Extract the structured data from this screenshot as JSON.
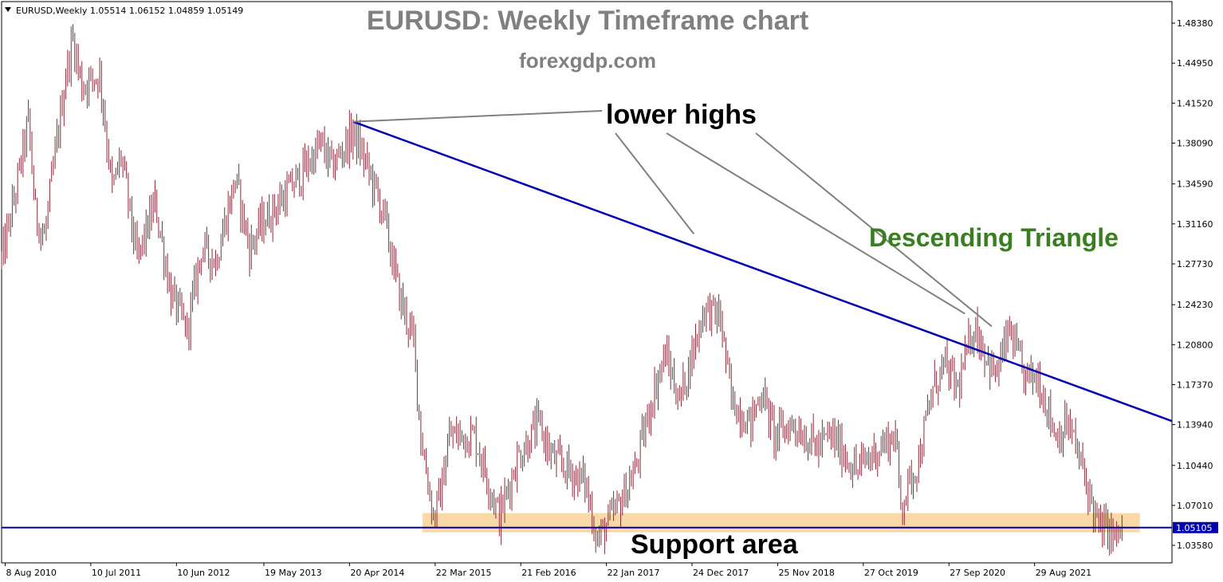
{
  "chart_data": {
    "type": "candlestick",
    "symbol_info": {
      "symbol": "EURUSD",
      "timeframe": "Weekly",
      "open": "1.05514",
      "high": "1.06152",
      "low": "1.04859",
      "close": "1.05149",
      "text": "EURUSD,Weekly  1.05514 1.06152 1.04859 1.05149"
    },
    "title": "EURUSD: Weekly Timeframe chart",
    "subtitle": "forexgdp.com",
    "y_range": [
      1.0208,
      1.5023
    ],
    "y_ticks": [
      "1.48380",
      "1.44950",
      "1.41520",
      "1.38090",
      "1.34590",
      "1.31160",
      "1.27730",
      "1.24230",
      "1.20800",
      "1.17370",
      "1.13940",
      "1.10440",
      "1.07010",
      "1.03580"
    ],
    "current_price": "1.05105",
    "x_range": [
      "2010-07-25",
      "2023-02-19"
    ],
    "x_tick_labels": [
      {
        "label": "8 Aug 2010",
        "date": "2010-08-08"
      },
      {
        "label": "10 Jul 2011",
        "date": "2011-07-10"
      },
      {
        "label": "10 Jun 2012",
        "date": "2012-06-10"
      },
      {
        "label": "19 May 2013",
        "date": "2013-05-19"
      },
      {
        "label": "20 Apr 2014",
        "date": "2014-04-20"
      },
      {
        "label": "22 Mar 2015",
        "date": "2015-03-22"
      },
      {
        "label": "21 Feb 2016",
        "date": "2016-02-21"
      },
      {
        "label": "22 Jan 2017",
        "date": "2017-01-22"
      },
      {
        "label": "24 Dec 2017",
        "date": "2017-12-24"
      },
      {
        "label": "25 Nov 2018",
        "date": "2018-11-25"
      },
      {
        "label": "27 Oct 2019",
        "date": "2019-10-27"
      },
      {
        "label": "27 Sep 2020",
        "date": "2020-09-27"
      },
      {
        "label": "29 Aug 2021",
        "date": "2021-08-29"
      }
    ],
    "price_path": [
      {
        "date": "2010-07-25",
        "price": 1.28
      },
      {
        "date": "2010-09-19",
        "price": 1.34
      },
      {
        "date": "2010-11-07",
        "price": 1.4
      },
      {
        "date": "2010-12-05",
        "price": 1.32
      },
      {
        "date": "2011-01-09",
        "price": 1.3
      },
      {
        "date": "2011-04-03",
        "price": 1.44
      },
      {
        "date": "2011-05-01",
        "price": 1.47
      },
      {
        "date": "2011-06-05",
        "price": 1.43
      },
      {
        "date": "2011-08-14",
        "price": 1.44
      },
      {
        "date": "2011-10-02",
        "price": 1.34
      },
      {
        "date": "2011-11-06",
        "price": 1.37
      },
      {
        "date": "2012-01-08",
        "price": 1.28
      },
      {
        "date": "2012-03-18",
        "price": 1.33
      },
      {
        "date": "2012-05-20",
        "price": 1.25
      },
      {
        "date": "2012-07-22",
        "price": 1.22
      },
      {
        "date": "2012-09-16",
        "price": 1.29
      },
      {
        "date": "2012-11-11",
        "price": 1.28
      },
      {
        "date": "2013-01-27",
        "price": 1.35
      },
      {
        "date": "2013-03-24",
        "price": 1.29
      },
      {
        "date": "2013-05-05",
        "price": 1.31
      },
      {
        "date": "2013-09-29",
        "price": 1.35
      },
      {
        "date": "2013-12-29",
        "price": 1.38
      },
      {
        "date": "2014-02-09",
        "price": 1.36
      },
      {
        "date": "2014-05-04",
        "price": 1.39
      },
      {
        "date": "2014-06-29",
        "price": 1.36
      },
      {
        "date": "2014-08-31",
        "price": 1.32
      },
      {
        "date": "2014-11-02",
        "price": 1.25
      },
      {
        "date": "2014-12-28",
        "price": 1.21
      },
      {
        "date": "2015-01-25",
        "price": 1.13
      },
      {
        "date": "2015-03-15",
        "price": 1.06
      },
      {
        "date": "2015-04-12",
        "price": 1.08
      },
      {
        "date": "2015-05-17",
        "price": 1.13
      },
      {
        "date": "2015-08-23",
        "price": 1.13
      },
      {
        "date": "2015-11-29",
        "price": 1.06
      },
      {
        "date": "2016-02-07",
        "price": 1.11
      },
      {
        "date": "2016-05-01",
        "price": 1.14
      },
      {
        "date": "2016-06-26",
        "price": 1.11
      },
      {
        "date": "2016-10-30",
        "price": 1.09
      },
      {
        "date": "2016-12-18",
        "price": 1.04
      },
      {
        "date": "2017-03-12",
        "price": 1.07
      },
      {
        "date": "2017-05-14",
        "price": 1.1
      },
      {
        "date": "2017-07-30",
        "price": 1.17
      },
      {
        "date": "2017-09-10",
        "price": 1.2
      },
      {
        "date": "2017-11-05",
        "price": 1.16
      },
      {
        "date": "2018-02-11",
        "price": 1.24
      },
      {
        "date": "2018-04-15",
        "price": 1.23
      },
      {
        "date": "2018-05-27",
        "price": 1.16
      },
      {
        "date": "2018-08-12",
        "price": 1.14
      },
      {
        "date": "2018-09-23",
        "price": 1.17
      },
      {
        "date": "2018-11-11",
        "price": 1.13
      },
      {
        "date": "2019-01-27",
        "price": 1.14
      },
      {
        "date": "2019-04-28",
        "price": 1.12
      },
      {
        "date": "2019-06-23",
        "price": 1.13
      },
      {
        "date": "2019-09-29",
        "price": 1.1
      },
      {
        "date": "2019-12-29",
        "price": 1.12
      },
      {
        "date": "2020-03-01",
        "price": 1.13
      },
      {
        "date": "2020-03-22",
        "price": 1.07
      },
      {
        "date": "2020-05-31",
        "price": 1.11
      },
      {
        "date": "2020-07-26",
        "price": 1.17
      },
      {
        "date": "2020-09-06",
        "price": 1.19
      },
      {
        "date": "2020-11-01",
        "price": 1.17
      },
      {
        "date": "2021-01-03",
        "price": 1.225
      },
      {
        "date": "2021-03-28",
        "price": 1.18
      },
      {
        "date": "2021-05-23",
        "price": 1.22
      },
      {
        "date": "2021-07-18",
        "price": 1.18
      },
      {
        "date": "2021-09-12",
        "price": 1.18
      },
      {
        "date": "2021-11-21",
        "price": 1.13
      },
      {
        "date": "2022-01-09",
        "price": 1.14
      },
      {
        "date": "2022-03-06",
        "price": 1.1
      },
      {
        "date": "2022-05-08",
        "price": 1.05
      },
      {
        "date": "2022-06-12",
        "price": 1.05
      },
      {
        "date": "2022-07-10",
        "price": 1.04
      },
      {
        "date": "2022-08-07",
        "price": 1.05
      }
    ],
    "trendline": {
      "start": {
        "date": "2014-05-04",
        "price": 1.3993
      },
      "end": {
        "date": "2023-02-19",
        "price": 1.1424
      },
      "color": "#0000b0"
    },
    "support_line": {
      "price": 1.05105,
      "color": "#0000b0"
    },
    "support_area": {
      "price_low": 1.047,
      "price_high": 1.0635,
      "date_start": "2015-02-01",
      "date_end": "2022-10-16",
      "color": "#f9d9a6"
    },
    "annotations": {
      "lower_highs": {
        "text": "lower highs",
        "pointers": [
          {
            "date": "2014-05-04",
            "price": 1.3993
          },
          {
            "date": "2017-12-31",
            "price": 1.303
          },
          {
            "date": "2020-11-29",
            "price": 1.2345
          },
          {
            "date": "2021-03-14",
            "price": 1.2237
          }
        ]
      },
      "pattern": {
        "text": "Descending Triangle",
        "color": "#3a7d22"
      },
      "support": {
        "text": "Support area"
      }
    },
    "colors": {
      "candle": "#8b2a3a",
      "line": "#0000b0",
      "annotation_line": "#808080"
    },
    "grid": false
  }
}
